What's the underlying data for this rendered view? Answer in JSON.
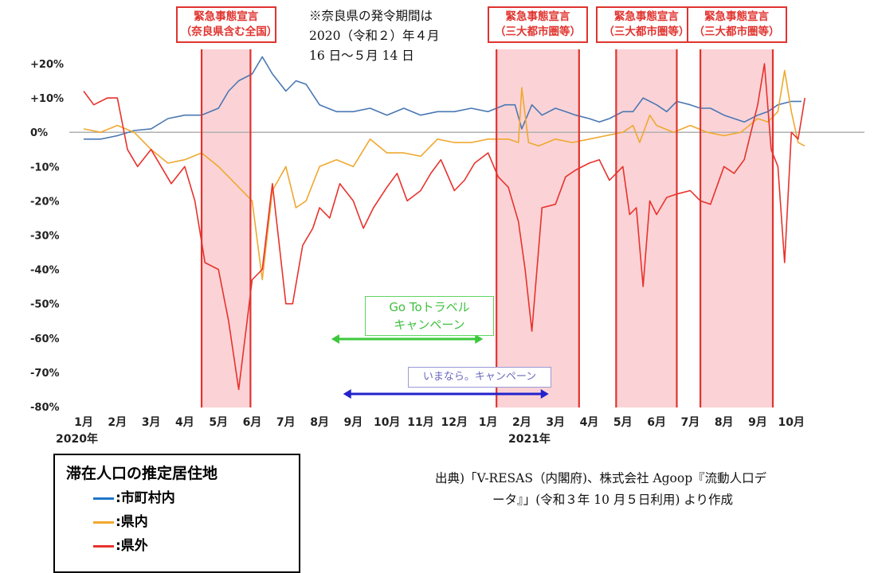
{
  "chart_data": {
    "type": "line",
    "yticks": [
      "+20%",
      "+10%",
      "0%",
      "-10%",
      "-20%",
      "-30%",
      "-40%",
      "-50%",
      "-60%",
      "-70%",
      "-80%"
    ],
    "ytick_values": [
      20,
      10,
      0,
      -10,
      -20,
      -30,
      -40,
      -50,
      -60,
      -70,
      -80
    ],
    "ylim": [
      -80,
      25
    ],
    "xlim": [
      0,
      21.6
    ],
    "month_ticks": [
      "1月",
      "2月",
      "3月",
      "4月",
      "5月",
      "6月",
      "7月",
      "8月",
      "9月",
      "10月",
      "11月",
      "12月",
      "1月",
      "2月",
      "3月",
      "4月",
      "5月",
      "6月",
      "7月",
      "8月",
      "9月",
      "10月"
    ],
    "year_labels": [
      {
        "text": "2020年",
        "x": 0
      },
      {
        "text": "2021年",
        "x": 12.6
      }
    ],
    "grid": false,
    "series": [
      {
        "name": "市町村内",
        "color": "#4a77b4",
        "x": [
          0,
          0.5,
          1,
          1.5,
          2,
          2.5,
          3,
          3.5,
          4,
          4.3,
          4.6,
          5,
          5.3,
          5.6,
          6,
          6.3,
          6.6,
          7,
          7.5,
          8,
          8.5,
          9,
          9.5,
          10,
          10.5,
          11,
          11.5,
          12,
          12.5,
          12.8,
          13,
          13.3,
          13.6,
          14,
          14.3,
          14.6,
          15,
          15.3,
          15.6,
          16,
          16.3,
          16.6,
          17,
          17.3,
          17.6,
          18,
          18.3,
          18.6,
          19,
          19.3,
          19.6,
          20,
          20.3,
          20.6,
          21,
          21.3
        ],
        "values": [
          -2,
          -2,
          -1,
          0.5,
          1,
          4,
          5,
          5,
          7,
          12,
          15,
          17,
          22,
          17,
          12,
          15,
          14,
          8,
          6,
          6,
          7,
          5,
          7,
          5,
          6,
          6,
          7,
          6,
          8,
          8,
          1,
          8,
          5,
          7,
          6,
          5,
          4,
          3,
          4,
          6,
          6,
          10,
          8,
          6,
          9,
          8,
          7,
          7,
          5,
          4,
          3,
          5,
          6,
          8,
          9,
          9
        ]
      },
      {
        "name": "県内",
        "color": "#f0a830",
        "x": [
          0,
          0.5,
          1,
          1.5,
          2,
          2.5,
          3,
          3.5,
          4,
          4.5,
          5,
          5.3,
          5.6,
          6,
          6.3,
          6.6,
          7,
          7.5,
          8,
          8.5,
          9,
          9.5,
          10,
          10.5,
          11,
          11.5,
          12,
          12.3,
          12.6,
          12.9,
          13,
          13.2,
          13.5,
          14,
          14.5,
          15,
          15.5,
          16,
          16.3,
          16.5,
          16.8,
          17,
          17.5,
          18,
          18.5,
          19,
          19.5,
          20,
          20.3,
          20.6,
          20.8,
          21,
          21.2,
          21.4
        ],
        "values": [
          1,
          0,
          2,
          0,
          -5,
          -9,
          -8,
          -6,
          -10,
          -15,
          -20,
          -43,
          -17,
          -10,
          -22,
          -20,
          -10,
          -8,
          -10,
          -2,
          -6,
          -6,
          -7,
          -2,
          -3,
          -3,
          -2,
          -2,
          -2,
          -3,
          13,
          -3,
          -4,
          -2,
          -3,
          -2,
          -1,
          0,
          2,
          -3,
          5,
          2,
          0,
          2,
          0,
          -1,
          0,
          4,
          3,
          6,
          18,
          6,
          -3,
          -4
        ]
      },
      {
        "name": "県外",
        "color": "#e8322d",
        "x": [
          0,
          0.3,
          0.7,
          1,
          1.3,
          1.6,
          2,
          2.3,
          2.6,
          3,
          3.3,
          3.6,
          4,
          4.3,
          4.6,
          5,
          5.3,
          5.6,
          6,
          6.2,
          6.5,
          6.8,
          7,
          7.3,
          7.6,
          8,
          8.3,
          8.6,
          9,
          9.3,
          9.6,
          10,
          10.3,
          10.6,
          11,
          11.3,
          11.6,
          12,
          12.3,
          12.6,
          12.9,
          13.1,
          13.3,
          13.6,
          14,
          14.3,
          14.6,
          15,
          15.3,
          15.6,
          16,
          16.2,
          16.4,
          16.6,
          16.8,
          17,
          17.3,
          17.6,
          18,
          18.3,
          18.6,
          19,
          19.3,
          19.6,
          20,
          20.2,
          20.4,
          20.6,
          20.8,
          21,
          21.2,
          21.4
        ],
        "values": [
          12,
          8,
          10,
          10,
          -5,
          -10,
          -5,
          -10,
          -15,
          -10,
          -20,
          -38,
          -40,
          -55,
          -75,
          -43,
          -40,
          -15,
          -50,
          -50,
          -33,
          -28,
          -22,
          -25,
          -15,
          -20,
          -28,
          -22,
          -16,
          -12,
          -20,
          -17,
          -12,
          -8,
          -17,
          -14,
          -9,
          -6,
          -13,
          -16,
          -26,
          -40,
          -58,
          -22,
          -21,
          -13,
          -11,
          -9,
          -8,
          -14,
          -10,
          -24,
          -22,
          -45,
          -20,
          -24,
          -19,
          -18,
          -17,
          -20,
          -21,
          -10,
          -12,
          -8,
          8,
          20,
          -5,
          -10,
          -38,
          0,
          -2,
          10
        ]
      }
    ],
    "emergency_periods": [
      {
        "start": 3.5,
        "end": 4.95,
        "label_l1": "緊急事態宣言",
        "label_l2": "（奈良県含む全国）"
      },
      {
        "start": 12.25,
        "end": 14.7,
        "label_l1": "緊急事態宣言",
        "label_l2": "（三大都市圏等）"
      },
      {
        "start": 15.8,
        "end": 17.6,
        "label_l1": "緊急事態宣言",
        "label_l2": "（三大都市圏等）"
      },
      {
        "start": 18.3,
        "end": 20.45,
        "label_l1": "緊急事態宣言",
        "label_l2": "（三大都市圏等）"
      }
    ],
    "campaigns": [
      {
        "label_l1": "Go Toトラベル",
        "label_l2": "キャンペーン",
        "start": 7.35,
        "end": 11.85,
        "color": "#3cc83c"
      },
      {
        "label": "いまなら。キャンペーン",
        "start": 7.7,
        "end": 13.8,
        "color": "#2222cc"
      }
    ]
  },
  "note": {
    "l1": "※奈良県の発令期間は",
    "l2": "2020（令和２）年４月",
    "l3": "16 日～５月 14 日"
  },
  "legend": {
    "title": "滞在人口の推定居住地",
    "items": [
      {
        "label": ":市町村内",
        "color": "#4a77b4"
      },
      {
        "label": ":県内",
        "color": "#f0a830"
      },
      {
        "label": ":県外",
        "color": "#e8322d"
      }
    ]
  },
  "source": {
    "l1": "出典)「V-RESAS（内閣府)、株式会社 Agoop『流動人口デ",
    "l2": "ータ』」(令和３年 10 月５日利用) より作成"
  }
}
